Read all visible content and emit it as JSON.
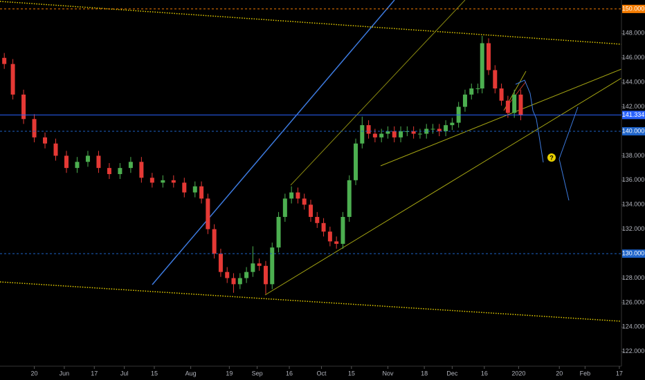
{
  "chart_data": {
    "type": "candlestick",
    "x": [
      126,
      130,
      135,
      140,
      145,
      150,
      155,
      160,
      165,
      170,
      175,
      180,
      185,
      190,
      195,
      200,
      205,
      210,
      215,
      218,
      221,
      224,
      227,
      230,
      233,
      236,
      239,
      242,
      245,
      248,
      251,
      254,
      257,
      260,
      263,
      266,
      269,
      272,
      275,
      278,
      281,
      284,
      287,
      290,
      293,
      296,
      299,
      302,
      305,
      308,
      311,
      314,
      317,
      320,
      323,
      326,
      329,
      332,
      335,
      338,
      341,
      344,
      347,
      349,
      352,
      355,
      358,
      361,
      364,
      367
    ],
    "open": [
      146,
      145.5,
      143,
      141,
      139.5,
      139,
      138,
      137,
      137.5,
      138,
      137,
      136.5,
      137,
      137.5,
      136.2,
      135.8,
      136,
      135.8,
      135,
      135.5,
      134.5,
      132,
      130,
      128.5,
      128,
      127.5,
      128,
      128.5,
      129.2,
      129,
      127.5,
      130.5,
      133,
      134.5,
      135,
      134.5,
      134,
      133,
      132.5,
      131.8,
      131,
      130.8,
      133,
      136,
      139,
      140.5,
      139.8,
      139.5,
      139.8,
      140,
      139.5,
      140,
      140,
      139.8,
      139.8,
      140.2,
      140.2,
      140,
      140.5,
      140.7,
      142,
      143,
      143.5,
      143.5,
      147.2,
      145,
      143.5,
      142.5,
      141.5,
      143
    ],
    "high": [
      146.4,
      145.9,
      143.4,
      141.4,
      139.9,
      139.4,
      138.4,
      137.9,
      138.4,
      138.4,
      137.4,
      137.4,
      137.9,
      137.9,
      136.6,
      136.4,
      136.4,
      136.2,
      135.9,
      135.9,
      134.9,
      132.4,
      130.4,
      128.9,
      128.4,
      128.4,
      128.9,
      130.6,
      129.6,
      129.4,
      130.9,
      133.4,
      134.9,
      135.5,
      135.4,
      134.9,
      134.4,
      133.4,
      132.9,
      132.2,
      131.4,
      133.4,
      136.4,
      139.4,
      141.2,
      140.9,
      140.2,
      140.2,
      140.4,
      140.4,
      140.4,
      140.4,
      140.4,
      140.2,
      140.6,
      140.6,
      140.6,
      140.9,
      141.1,
      142.4,
      143.4,
      143.9,
      143.9,
      147.8,
      147.6,
      145.4,
      143.9,
      142.9,
      143.4,
      143.4
    ],
    "low": [
      145.1,
      142.6,
      140.6,
      139.1,
      138.6,
      137.6,
      136.6,
      136.6,
      137.1,
      136.6,
      136.1,
      136.1,
      136.6,
      135.8,
      135.4,
      135.4,
      135.4,
      134.6,
      134.6,
      134.1,
      131.6,
      129.6,
      128.1,
      127.6,
      126.8,
      127.1,
      127.6,
      128.1,
      128.6,
      126.7,
      127.1,
      130.1,
      132.6,
      134.1,
      134.1,
      133.6,
      132.6,
      132.1,
      131.4,
      130.6,
      130.4,
      130.4,
      132.6,
      135.6,
      138.6,
      139.4,
      139.1,
      139.1,
      139.4,
      139.1,
      139.1,
      139.6,
      139.4,
      139.4,
      139.4,
      139.8,
      139.6,
      139.6,
      140.1,
      140.3,
      141.6,
      142.6,
      143.1,
      143.1,
      144.6,
      143.1,
      142.1,
      141.1,
      141.1,
      140.9
    ],
    "close": [
      145.5,
      143,
      141,
      139.5,
      139,
      138,
      137,
      137.5,
      138,
      137,
      136.5,
      137,
      137.5,
      136.2,
      135.8,
      136,
      135.8,
      135,
      135.5,
      134.5,
      132,
      130,
      128.5,
      128,
      127.5,
      128,
      128.5,
      129.2,
      129,
      127.5,
      130.5,
      133,
      134.5,
      135,
      134.5,
      134,
      133,
      132.5,
      131.8,
      131,
      130.8,
      133,
      136,
      139,
      140.5,
      139.8,
      139.5,
      139.8,
      140,
      139.5,
      140,
      140,
      139.8,
      139.8,
      140.2,
      140.2,
      140,
      140.5,
      140.7,
      142,
      143,
      143.5,
      143.5,
      147.2,
      145,
      143.5,
      142.5,
      141.5,
      143,
      141.3
    ],
    "up_color": "#4caf50",
    "down_color": "#e53935",
    "xlim": [
      124,
      414
    ],
    "xticks": [
      {
        "value": 140,
        "label": "20"
      },
      {
        "value": 154,
        "label": "Jun"
      },
      {
        "value": 168,
        "label": "17"
      },
      {
        "value": 182,
        "label": "Jul"
      },
      {
        "value": 196,
        "label": "15"
      },
      {
        "value": 213,
        "label": "Aug"
      },
      {
        "value": 231,
        "label": "19"
      },
      {
        "value": 244,
        "label": "Sep"
      },
      {
        "value": 259,
        "label": "16"
      },
      {
        "value": 274,
        "label": "Oct"
      },
      {
        "value": 288,
        "label": "15"
      },
      {
        "value": 305,
        "label": "Nov"
      },
      {
        "value": 322,
        "label": "18"
      },
      {
        "value": 335,
        "label": "Dec"
      },
      {
        "value": 350,
        "label": "16"
      },
      {
        "value": 366,
        "label": "2020"
      },
      {
        "value": 385,
        "label": "20"
      },
      {
        "value": 397,
        "label": "Feb"
      },
      {
        "value": 413,
        "label": "17"
      }
    ],
    "ylim": [
      120.8,
      150.73
    ],
    "yticks": [
      {
        "value": 122,
        "label": "122.000"
      },
      {
        "value": 124,
        "label": "124.000"
      },
      {
        "value": 126,
        "label": "126.000"
      },
      {
        "value": 128,
        "label": "128.000"
      },
      {
        "value": 132,
        "label": "132.000"
      },
      {
        "value": 134,
        "label": "134.000"
      },
      {
        "value": 136,
        "label": "136.000"
      },
      {
        "value": 138,
        "label": "138.000"
      },
      {
        "value": 142,
        "label": "142.000"
      },
      {
        "value": 144,
        "label": "144.000"
      },
      {
        "value": 146,
        "label": "146.000"
      },
      {
        "value": 148,
        "label": "148.000"
      }
    ],
    "price_lines": [
      {
        "value": 150,
        "label": "150.000",
        "color": "#f57c00",
        "dashed": true
      },
      {
        "value": 141.334,
        "label": "141.334",
        "color": "#2962ff",
        "dashed": false
      },
      {
        "value": 140,
        "label": "140.000",
        "color": "#1e63c8",
        "dashed": true
      },
      {
        "value": 130,
        "label": "130.000",
        "color": "#1e63c8",
        "dashed": true
      }
    ],
    "grid": false,
    "annotation": "?"
  }
}
